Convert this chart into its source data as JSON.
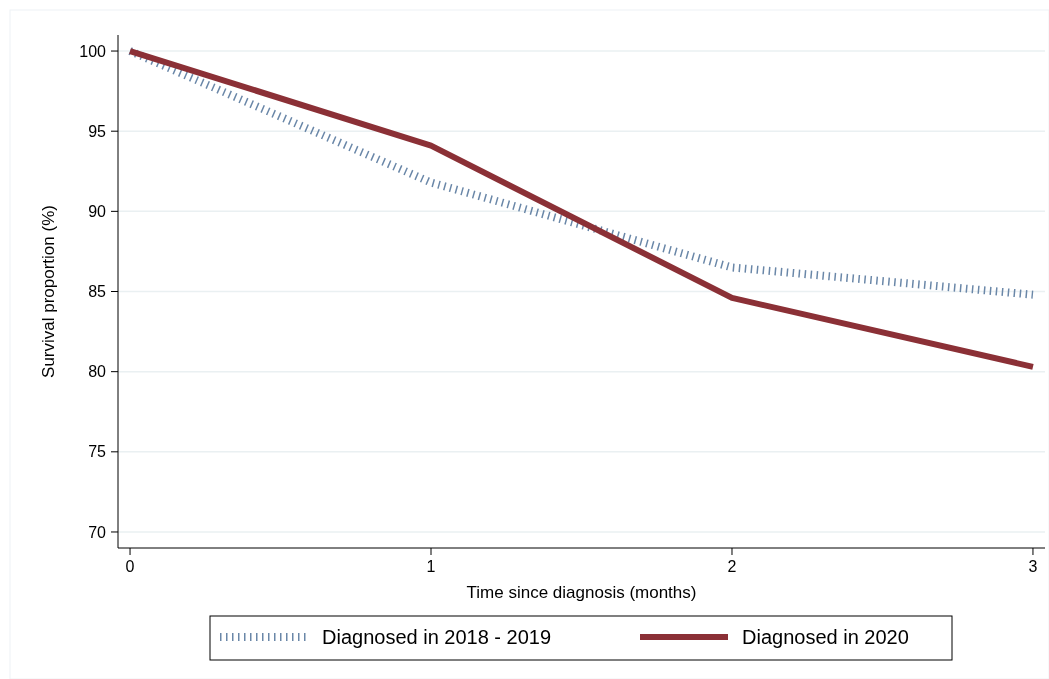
{
  "chart_data": {
    "type": "line",
    "xlabel": "Time since diagnosis (months)",
    "ylabel": "Survival proportion (%)",
    "x": [
      0,
      1,
      2,
      3
    ],
    "series": [
      {
        "name": "Diagnosed in 2018 - 2019",
        "color": "#6a87a8",
        "values": [
          100,
          91.8,
          86.5,
          84.8
        ],
        "line_style": "dotted"
      },
      {
        "name": "Diagnosed in 2020",
        "color": "#8b3036",
        "values": [
          100,
          94.1,
          84.6,
          80.3
        ],
        "line_style": "solid"
      }
    ],
    "xlim": [
      -0.04,
      3.04
    ],
    "xticks": [
      0,
      1,
      2,
      3
    ],
    "ylim": [
      69,
      101
    ],
    "yticks": [
      70,
      75,
      80,
      85,
      90,
      95,
      100
    ],
    "grid": "y",
    "legend": "bottom",
    "marker": "none"
  }
}
